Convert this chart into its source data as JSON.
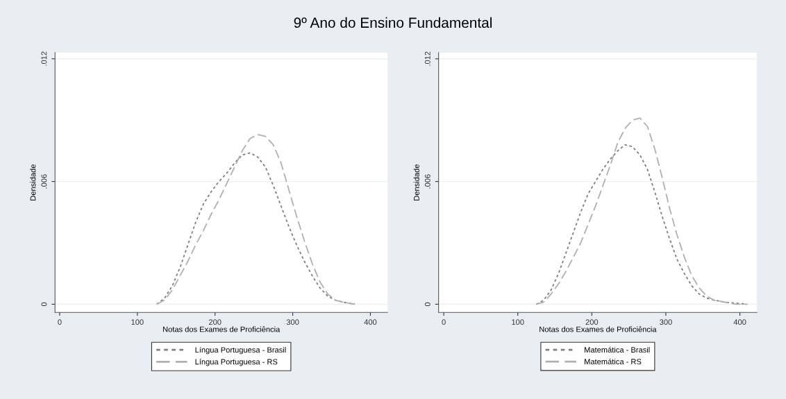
{
  "chart_data": [
    {
      "type": "line",
      "title": "9º Ano do Ensino Fundamental",
      "xlabel": "Notas dos Exames de Proficiência",
      "ylabel": "Densidade",
      "xlim": [
        -6,
        422
      ],
      "ylim": [
        -0.0004,
        0.0123
      ],
      "xticks": [
        0,
        100,
        200,
        300,
        400
      ],
      "yticks": [
        {
          "value": 0,
          "label": "0"
        },
        {
          "value": 0.006,
          "label": ".006"
        },
        {
          "value": 0.012,
          "label": ".012"
        }
      ],
      "grid": "y",
      "legend": "bottom",
      "marker": "none",
      "series": [
        {
          "name": "Língua Portuguesa - Brasil",
          "color": "#7f7f7f",
          "line_style": "dotted",
          "x": [
            125,
            135,
            145,
            155,
            165,
            175,
            185,
            195,
            205,
            215,
            225,
            235,
            245,
            255,
            265,
            275,
            285,
            295,
            305,
            315,
            325,
            335,
            345,
            355,
            365,
            380
          ],
          "values": [
            0,
            0.0003,
            0.0009,
            0.0018,
            0.0029,
            0.004,
            0.0049,
            0.0055,
            0.006,
            0.0064,
            0.0069,
            0.0073,
            0.0074,
            0.0072,
            0.0067,
            0.0058,
            0.0048,
            0.0038,
            0.0029,
            0.0021,
            0.0014,
            0.0008,
            0.0004,
            0.0002,
            0.0001,
            0
          ]
        },
        {
          "name": "Língua Portuguesa - RS",
          "color": "#b0b0b0",
          "line_style": "dashed",
          "x": [
            125,
            135,
            145,
            155,
            165,
            175,
            185,
            195,
            205,
            215,
            225,
            235,
            245,
            255,
            265,
            275,
            285,
            295,
            305,
            315,
            325,
            335,
            345,
            355,
            365,
            380
          ],
          "values": [
            0,
            0.0002,
            0.0007,
            0.0014,
            0.0021,
            0.0029,
            0.0036,
            0.0044,
            0.0051,
            0.0059,
            0.0067,
            0.0075,
            0.0081,
            0.0083,
            0.0082,
            0.0078,
            0.0069,
            0.0056,
            0.0043,
            0.0031,
            0.002,
            0.0011,
            0.0005,
            0.0002,
            0.0001,
            0
          ]
        }
      ]
    },
    {
      "type": "line",
      "xlabel": "Notas dos Exames de Proficiência",
      "ylabel": "Densidade",
      "xlim": [
        -7,
        423
      ],
      "ylim": [
        -0.0004,
        0.0123
      ],
      "xticks": [
        0,
        100,
        200,
        300,
        400
      ],
      "yticks": [
        {
          "value": 0,
          "label": "0"
        },
        {
          "value": 0.006,
          "label": ".006"
        },
        {
          "value": 0.012,
          "label": ".012"
        }
      ],
      "grid": "y",
      "legend": "bottom",
      "marker": "none",
      "series": [
        {
          "name": "Matemática - Brasil",
          "color": "#7f7f7f",
          "line_style": "dotted",
          "x": [
            125,
            135,
            145,
            155,
            165,
            175,
            185,
            195,
            205,
            215,
            225,
            235,
            245,
            255,
            265,
            275,
            285,
            295,
            305,
            315,
            325,
            335,
            345,
            355,
            365,
            380,
            410
          ],
          "values": [
            0,
            0.0002,
            0.0007,
            0.0015,
            0.0025,
            0.0035,
            0.0045,
            0.0054,
            0.006,
            0.0066,
            0.0071,
            0.0075,
            0.0078,
            0.0077,
            0.0073,
            0.0066,
            0.0055,
            0.0043,
            0.0032,
            0.0022,
            0.0015,
            0.0009,
            0.0005,
            0.0003,
            0.0002,
            0.0001,
            0
          ]
        },
        {
          "name": "Matemática - RS",
          "color": "#b0b0b0",
          "line_style": "dashed",
          "x": [
            125,
            135,
            145,
            155,
            165,
            175,
            185,
            195,
            205,
            215,
            225,
            235,
            245,
            255,
            265,
            275,
            285,
            295,
            305,
            315,
            325,
            335,
            345,
            355,
            365,
            380,
            395,
            410
          ],
          "values": [
            0,
            0.0001,
            0.0005,
            0.001,
            0.0016,
            0.0023,
            0.003,
            0.0039,
            0.0048,
            0.0058,
            0.0068,
            0.0079,
            0.0086,
            0.009,
            0.0091,
            0.0087,
            0.0076,
            0.0062,
            0.0047,
            0.0034,
            0.0023,
            0.0014,
            0.0008,
            0.0004,
            0.0002,
            0.0001,
            0,
            0
          ]
        }
      ]
    }
  ]
}
